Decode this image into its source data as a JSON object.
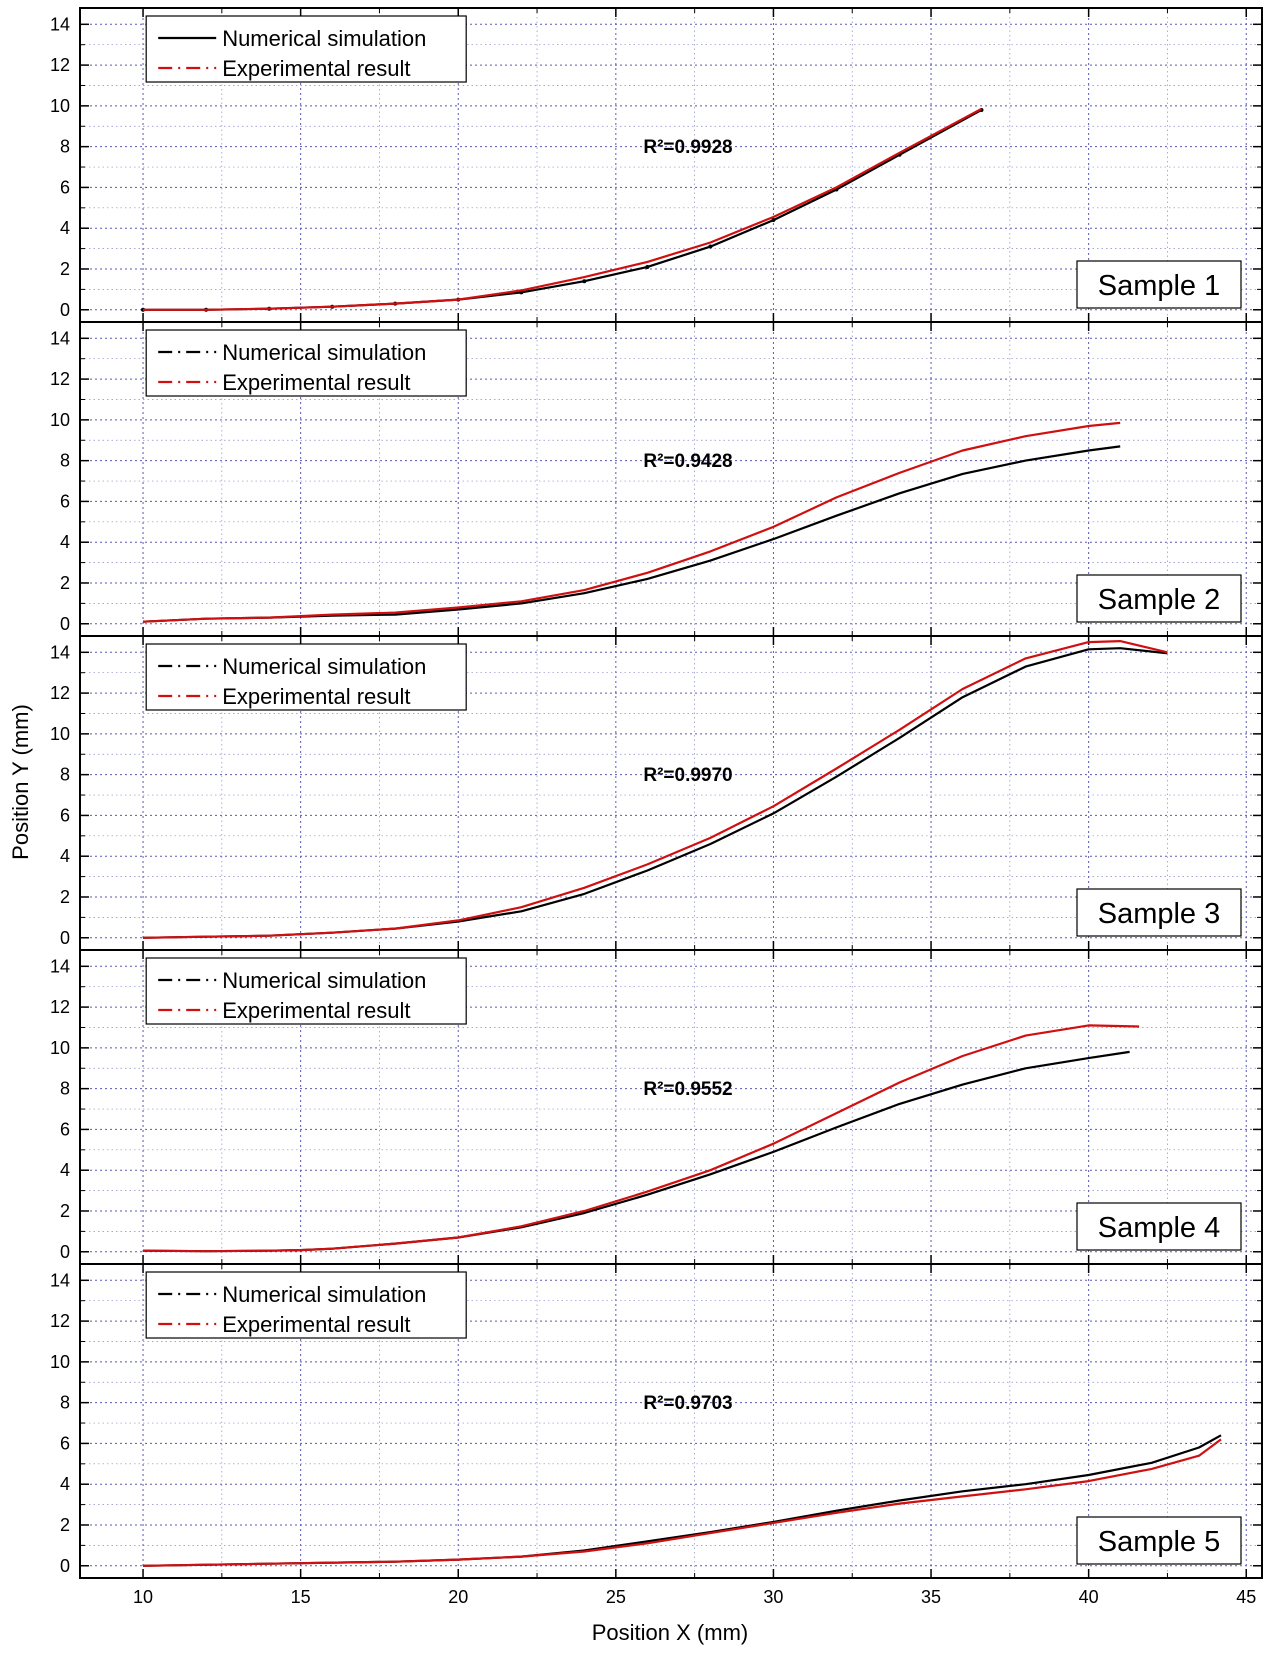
{
  "chart_data": {
    "type": "line",
    "xlabel": "Position X (mm)",
    "ylabel": "Position Y (mm)",
    "xlim": [
      8,
      45.5
    ],
    "ylim": [
      -0.6,
      14.8
    ],
    "x_ticks": [
      10,
      15,
      20,
      25,
      30,
      35,
      40,
      45
    ],
    "y_ticks": [
      0,
      2,
      4,
      6,
      8,
      10,
      12,
      14
    ],
    "grid": true,
    "legend_position": "top-left",
    "colors": {
      "numerical": "#000000",
      "experimental": "#d01010",
      "grid": "#5a5ab4"
    },
    "panels": [
      {
        "label": "Sample 1",
        "r2": "R²=0.9928",
        "legend": [
          "Numerical simulation",
          "Experimental result"
        ],
        "series": [
          {
            "name": "Numerical simulation",
            "x": [
              10,
              12,
              14,
              16,
              18,
              20,
              22,
              24,
              26,
              28,
              30,
              32,
              34,
              36.6
            ],
            "y": [
              0,
              0,
              0.05,
              0.15,
              0.3,
              0.5,
              0.85,
              1.4,
              2.1,
              3.1,
              4.4,
              5.9,
              7.6,
              9.8
            ]
          },
          {
            "name": "Experimental result",
            "x": [
              10,
              12,
              14,
              16,
              18,
              20,
              22,
              24,
              26,
              28,
              30,
              32,
              34,
              36.6
            ],
            "y": [
              0,
              0,
              0.05,
              0.15,
              0.3,
              0.5,
              0.95,
              1.6,
              2.35,
              3.3,
              4.55,
              6.0,
              7.7,
              9.85
            ]
          }
        ]
      },
      {
        "label": "Sample 2",
        "r2": "R²=0.9428",
        "legend": [
          "Numerical simulation",
          "Experimental result"
        ],
        "series": [
          {
            "name": "Numerical simulation",
            "x": [
              10,
              12,
              14,
              16,
              18,
              20,
              22,
              24,
              26,
              28,
              30,
              32,
              34,
              36,
              38,
              40,
              41
            ],
            "y": [
              0.1,
              0.25,
              0.3,
              0.4,
              0.45,
              0.7,
              1.0,
              1.5,
              2.2,
              3.1,
              4.15,
              5.3,
              6.4,
              7.35,
              8.0,
              8.5,
              8.7
            ]
          },
          {
            "name": "Experimental result",
            "x": [
              10,
              12,
              14,
              16,
              18,
              20,
              22,
              24,
              26,
              28,
              30,
              32,
              34,
              36,
              38,
              40,
              41
            ],
            "y": [
              0.1,
              0.25,
              0.3,
              0.45,
              0.55,
              0.8,
              1.1,
              1.65,
              2.5,
              3.55,
              4.75,
              6.2,
              7.4,
              8.5,
              9.2,
              9.7,
              9.85
            ]
          }
        ]
      },
      {
        "label": "Sample 3",
        "r2": "R²=0.9970",
        "legend": [
          "Numerical simulation",
          "Experimental result"
        ],
        "series": [
          {
            "name": "Numerical simulation",
            "x": [
              10,
              12,
              14,
              16,
              18,
              20,
              22,
              24,
              26,
              28,
              30,
              32,
              34,
              36,
              38,
              40,
              41,
              42.5
            ],
            "y": [
              0,
              0.05,
              0.1,
              0.25,
              0.45,
              0.8,
              1.3,
              2.15,
              3.3,
              4.6,
              6.1,
              7.9,
              9.8,
              11.8,
              13.3,
              14.15,
              14.2,
              13.95
            ]
          },
          {
            "name": "Experimental result",
            "x": [
              10,
              12,
              14,
              16,
              18,
              20,
              22,
              24,
              26,
              28,
              30,
              32,
              34,
              36,
              38,
              40,
              41,
              42.5
            ],
            "y": [
              0,
              0.05,
              0.1,
              0.25,
              0.45,
              0.85,
              1.5,
              2.45,
              3.6,
              4.9,
              6.45,
              8.3,
              10.2,
              12.2,
              13.7,
              14.5,
              14.55,
              14.0
            ]
          }
        ]
      },
      {
        "label": "Sample 4",
        "r2": "R²=0.9552",
        "legend": [
          "Numerical simulation",
          "Experimental result"
        ],
        "series": [
          {
            "name": "Numerical simulation",
            "x": [
              10,
              12,
              14,
              15,
              16,
              18,
              20,
              22,
              24,
              26,
              28,
              30,
              32,
              34,
              36,
              38,
              40,
              41.3
            ],
            "y": [
              0.05,
              0.03,
              0.05,
              0.08,
              0.15,
              0.4,
              0.7,
              1.2,
              1.9,
              2.8,
              3.8,
              4.9,
              6.1,
              7.25,
              8.2,
              9.0,
              9.5,
              9.8
            ]
          },
          {
            "name": "Experimental result",
            "x": [
              10,
              12,
              14,
              15,
              16,
              18,
              20,
              22,
              24,
              26,
              28,
              30,
              32,
              34,
              36,
              38,
              40,
              41.6
            ],
            "y": [
              0.05,
              0.03,
              0.05,
              0.08,
              0.15,
              0.4,
              0.7,
              1.25,
              2.0,
              2.95,
              4.0,
              5.3,
              6.8,
              8.3,
              9.6,
              10.6,
              11.1,
              11.05
            ]
          }
        ]
      },
      {
        "label": "Sample 5",
        "r2": "R²=0.9703",
        "legend": [
          "Numerical simulation",
          "Experimental result"
        ],
        "series": [
          {
            "name": "Numerical simulation",
            "x": [
              10,
              14,
              18,
              20,
              22,
              24,
              26,
              28,
              30,
              32,
              34,
              36,
              38,
              40,
              42,
              43.5,
              44.2
            ],
            "y": [
              0,
              0.1,
              0.2,
              0.3,
              0.45,
              0.75,
              1.2,
              1.65,
              2.15,
              2.7,
              3.2,
              3.65,
              4.0,
              4.45,
              5.05,
              5.8,
              6.4
            ]
          },
          {
            "name": "Experimental result",
            "x": [
              10,
              14,
              18,
              20,
              22,
              24,
              26,
              28,
              30,
              32,
              34,
              36,
              38,
              40,
              42,
              43.5,
              44.2
            ],
            "y": [
              0,
              0.1,
              0.2,
              0.3,
              0.45,
              0.7,
              1.1,
              1.6,
              2.1,
              2.6,
              3.05,
              3.4,
              3.75,
              4.15,
              4.75,
              5.4,
              6.2
            ]
          }
        ]
      }
    ]
  }
}
